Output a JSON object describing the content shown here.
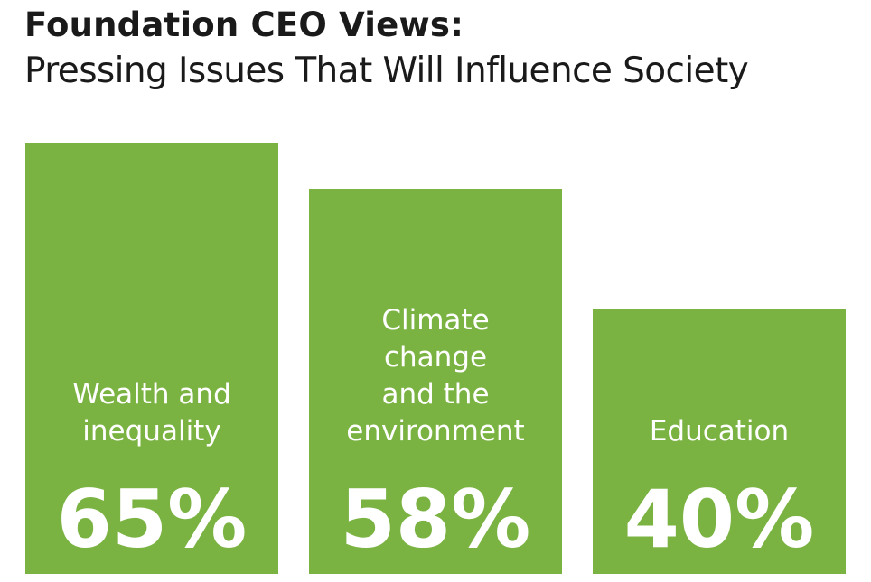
{
  "chart_data": {
    "type": "bar",
    "title": "Foundation CEO Views:",
    "subtitle": "Pressing Issues That Will Influence Society",
    "categories": [
      [
        "Wealth and",
        "inequality"
      ],
      [
        "Climate",
        "change",
        "and the",
        "environment"
      ],
      [
        "Education"
      ]
    ],
    "values": [
      65,
      58,
      40
    ],
    "value_labels": [
      "65%",
      "58%",
      "40%"
    ],
    "unit": "%",
    "bar_color": "#7ab342",
    "label_color": "#ffffff",
    "grid": false,
    "legend": "none"
  }
}
